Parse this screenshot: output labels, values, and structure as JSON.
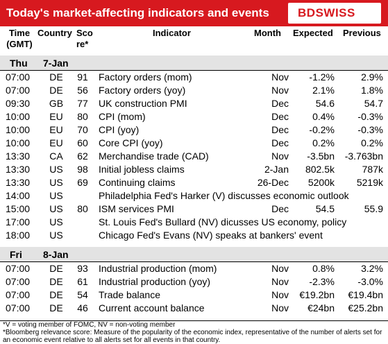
{
  "title": "Today's market-affecting indicators and events",
  "logo": {
    "bd": "BD",
    "x": "S",
    "swiss": "WISS"
  },
  "brand_color": "#d7191f",
  "header": {
    "time": "Time (GMT)",
    "country": "Country",
    "score": "Sco re*",
    "indicator": "Indicator",
    "month": "Month",
    "expected": "Expected",
    "previous": "Previous"
  },
  "days": [
    {
      "day": "Thu",
      "date": "7-Jan"
    },
    {
      "day": "Fri",
      "date": "8-Jan"
    }
  ],
  "rows_thu": [
    {
      "time": "07:00",
      "country": "DE",
      "score": "91",
      "indicator": "Factory orders (mom)",
      "month": "Nov",
      "expected": "-1.2%",
      "previous": "2.9%"
    },
    {
      "time": "07:00",
      "country": "DE",
      "score": "56",
      "indicator": "Factory orders (yoy)",
      "month": "Nov",
      "expected": "2.1%",
      "previous": "1.8%"
    },
    {
      "time": "09:30",
      "country": "GB",
      "score": "77",
      "indicator": "UK construction PMI",
      "month": "Dec",
      "expected": "54.6",
      "previous": "54.7"
    },
    {
      "time": "10:00",
      "country": "EU",
      "score": "80",
      "indicator": "CPI (mom)",
      "month": "Dec",
      "expected": "0.4%",
      "previous": "-0.3%"
    },
    {
      "time": "10:00",
      "country": "EU",
      "score": "70",
      "indicator": "CPI (yoy)",
      "month": "Dec",
      "expected": "-0.2%",
      "previous": "-0.3%"
    },
    {
      "time": "10:00",
      "country": "EU",
      "score": "60",
      "indicator": "Core CPI (yoy)",
      "month": "Dec",
      "expected": "0.2%",
      "previous": "0.2%"
    },
    {
      "time": "13:30",
      "country": "CA",
      "score": "62",
      "indicator": "Merchandise trade (CAD)",
      "month": "Nov",
      "expected": "-3.5bn",
      "previous": "-3.763bn"
    },
    {
      "time": "13:30",
      "country": "US",
      "score": "98",
      "indicator": "Initial jobless claims",
      "month": "2-Jan",
      "expected": "802.5k",
      "previous": "787k"
    },
    {
      "time": "13:30",
      "country": "US",
      "score": "69",
      "indicator": "Continuing claims",
      "month": "26-Dec",
      "expected": "5200k",
      "previous": "5219k"
    },
    {
      "time": "14:00",
      "country": "US",
      "score": "",
      "indicator": "Philadelphia Fed's Harker (V) discusses economic outlook",
      "month": "",
      "expected": "",
      "previous": ""
    },
    {
      "time": "15:00",
      "country": "US",
      "score": "80",
      "indicator": "ISM services PMI",
      "month": "Dec",
      "expected": "54.5",
      "previous": "55.9"
    },
    {
      "time": "17:00",
      "country": "US",
      "score": "",
      "indicator": "St. Louis Fed's Bullard (NV) dicusses US economy, policy",
      "month": "",
      "expected": "",
      "previous": ""
    },
    {
      "time": "18:00",
      "country": "US",
      "score": "",
      "indicator": "Chicago Fed's Evans (NV) speaks at bankers' event",
      "month": "",
      "expected": "",
      "previous": ""
    }
  ],
  "rows_fri": [
    {
      "time": "07:00",
      "country": "DE",
      "score": "93",
      "indicator": "Industrial production (mom)",
      "month": "Nov",
      "expected": "0.8%",
      "previous": "3.2%"
    },
    {
      "time": "07:00",
      "country": "DE",
      "score": "61",
      "indicator": "Industrial production (yoy)",
      "month": "Nov",
      "expected": "-2.3%",
      "previous": "-3.0%"
    },
    {
      "time": "07:00",
      "country": "DE",
      "score": "54",
      "indicator": "Trade balance",
      "month": "Nov",
      "expected": "€19.2bn",
      "previous": "€19.4bn"
    },
    {
      "time": "07:00",
      "country": "DE",
      "score": "46",
      "indicator": "Current account balance",
      "month": "Nov",
      "expected": "€24bn",
      "previous": "€25.2bn"
    }
  ],
  "footer": {
    "line1": "*V = voting member of FOMC, NV = non-voting member",
    "line2": "*Bloomberg relevance score:  Measure of the popularity of the economic index, representative of the number of alerts set for an economic event relative to all alerts set for all events in that country."
  }
}
